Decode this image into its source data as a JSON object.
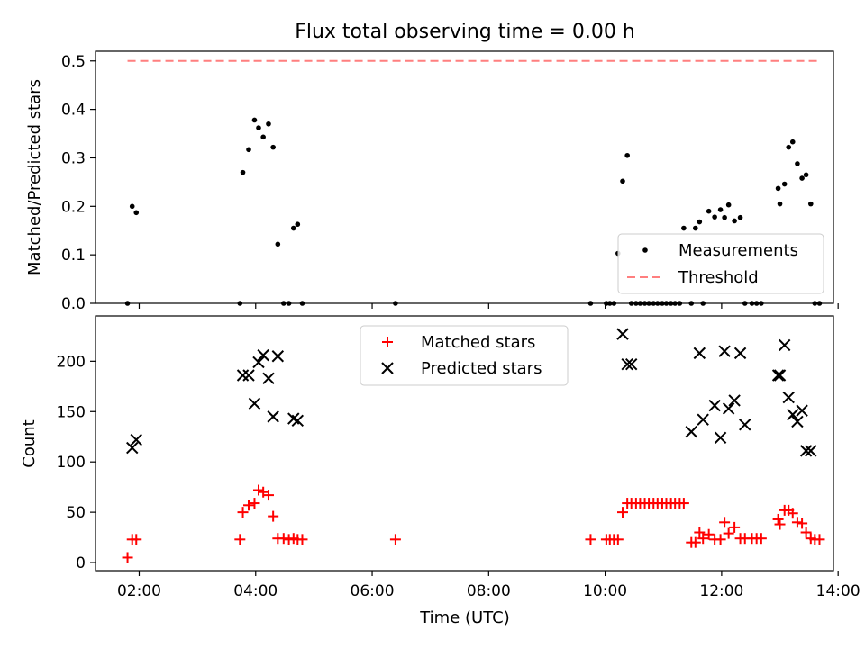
{
  "chart_data": {
    "type": "scatter",
    "title": "Flux total observing time = 0.00 h",
    "xlabel": "Time (UTC)",
    "x_ticks": [
      "02:00",
      "04:00",
      "06:00",
      "08:00",
      "10:00",
      "12:00",
      "14:00"
    ],
    "x_tick_hours": [
      2,
      4,
      6,
      8,
      10,
      12,
      14
    ],
    "xlim_hours": [
      1.25,
      13.92
    ],
    "top": {
      "ylabel": "Matched/Predicted stars",
      "ylim": [
        0,
        0.52
      ],
      "yticks": [
        "0.0",
        "0.1",
        "0.2",
        "0.3",
        "0.4",
        "0.5"
      ],
      "ytick_values": [
        0,
        0.1,
        0.2,
        0.3,
        0.4,
        0.5
      ],
      "legend_position": "lower-right",
      "series": [
        {
          "name": "Measurements",
          "color": "#000000",
          "marker": "dot",
          "x": [
            1.8,
            1.88,
            1.95,
            3.73,
            3.78,
            3.88,
            3.98,
            4.05,
            4.13,
            4.22,
            4.3,
            4.38,
            4.48,
            4.57,
            4.65,
            4.72,
            4.8,
            6.4,
            9.75,
            10.02,
            10.08,
            10.15,
            10.22,
            10.3,
            10.38,
            10.45,
            10.53,
            10.6,
            10.68,
            10.75,
            10.83,
            10.9,
            10.98,
            11.05,
            11.13,
            11.2,
            11.28,
            11.35,
            11.48,
            11.55,
            11.62,
            11.68,
            11.78,
            11.88,
            11.98,
            12.05,
            12.12,
            12.22,
            12.32,
            12.4,
            12.52,
            12.6,
            12.68,
            12.97,
            13.0,
            13.08,
            13.15,
            13.22,
            13.3,
            13.38,
            13.45,
            13.53,
            13.6,
            13.68
          ],
          "y": [
            0.0,
            0.2,
            0.187,
            0.0,
            0.27,
            0.317,
            0.378,
            0.362,
            0.343,
            0.37,
            0.322,
            0.122,
            0.0,
            0.0,
            0.155,
            0.163,
            0.0,
            0.0,
            0.0,
            0.0,
            0.0,
            0.0,
            0.103,
            0.252,
            0.305,
            0.0,
            0.0,
            0.0,
            0.0,
            0.0,
            0.0,
            0.0,
            0.0,
            0.0,
            0.0,
            0.0,
            0.0,
            0.155,
            0.0,
            0.155,
            0.168,
            0.0,
            0.19,
            0.178,
            0.193,
            0.177,
            0.203,
            0.17,
            0.177,
            0.0,
            0.0,
            0.0,
            0.0,
            0.237,
            0.205,
            0.246,
            0.322,
            0.333,
            0.288,
            0.258,
            0.265,
            0.205,
            0.0,
            0.0
          ]
        },
        {
          "name": "Threshold",
          "color": "#ff7f7f",
          "style": "dashed",
          "x": [
            1.8,
            13.65
          ],
          "y": [
            0.5,
            0.5
          ]
        }
      ]
    },
    "bottom": {
      "ylabel": "Count",
      "ylim": [
        -8,
        245
      ],
      "yticks": [
        "0",
        "50",
        "100",
        "150",
        "200"
      ],
      "ytick_values": [
        0,
        50,
        100,
        150,
        200
      ],
      "legend_position": "upper-center",
      "series": [
        {
          "name": "Matched stars",
          "color": "#ff0000",
          "marker": "plus",
          "x": [
            1.8,
            1.88,
            1.95,
            3.73,
            3.78,
            3.88,
            3.98,
            4.05,
            4.13,
            4.22,
            4.3,
            4.38,
            4.48,
            4.57,
            4.65,
            4.72,
            4.8,
            6.4,
            9.75,
            10.02,
            10.08,
            10.15,
            10.22,
            10.3,
            10.38,
            10.45,
            10.53,
            10.6,
            10.68,
            10.75,
            10.83,
            10.9,
            10.98,
            11.05,
            11.13,
            11.2,
            11.28,
            11.35,
            11.48,
            11.55,
            11.62,
            11.68,
            11.78,
            11.88,
            11.98,
            12.05,
            12.12,
            12.22,
            12.32,
            12.4,
            12.52,
            12.6,
            12.68,
            12.97,
            13.0,
            13.08,
            13.15,
            13.22,
            13.3,
            13.38,
            13.45,
            13.53,
            13.6,
            13.68
          ],
          "y": [
            5,
            23,
            23,
            23,
            50,
            57,
            59,
            72,
            70,
            67,
            46,
            24,
            24,
            23,
            24,
            23,
            23,
            23,
            23,
            23,
            23,
            23,
            23,
            50,
            59,
            59,
            59,
            59,
            59,
            59,
            59,
            59,
            59,
            59,
            59,
            59,
            59,
            59,
            20,
            20,
            30,
            24,
            28,
            23,
            23,
            40,
            29,
            35,
            24,
            24,
            24,
            24,
            24,
            43,
            38,
            52,
            52,
            49,
            40,
            39,
            30,
            24,
            23,
            23
          ]
        },
        {
          "name": "Predicted stars",
          "color": "#000000",
          "marker": "x",
          "x": [
            1.88,
            1.95,
            3.78,
            3.88,
            3.98,
            4.05,
            4.13,
            4.22,
            4.3,
            4.38,
            4.65,
            4.72,
            10.3,
            10.38,
            10.45,
            11.48,
            11.62,
            11.68,
            11.88,
            11.98,
            12.05,
            12.12,
            12.22,
            12.32,
            12.4,
            12.97,
            13.0,
            13.08,
            13.15,
            13.22,
            13.3,
            13.38,
            13.45,
            13.53
          ],
          "y": [
            114,
            122,
            186,
            186,
            158,
            199,
            206,
            183,
            145,
            205,
            143,
            141,
            227,
            197,
            197,
            130,
            208,
            142,
            156,
            124,
            210,
            153,
            161,
            208,
            137,
            186,
            186,
            216,
            164,
            147,
            140,
            151,
            111,
            111
          ]
        }
      ]
    }
  }
}
